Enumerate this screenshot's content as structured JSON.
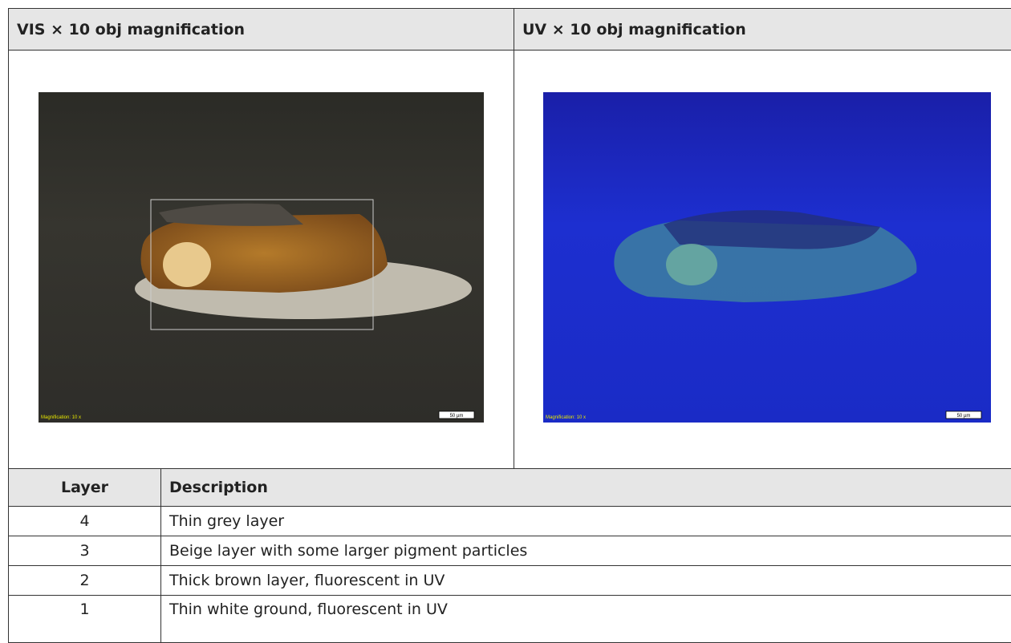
{
  "panels": [
    {
      "title": "VIS × 10 obj magnification",
      "magnification": "Magnification: 10 x",
      "scale_bar": "50 µm"
    },
    {
      "title": "UV × 10 obj magnification",
      "magnification": "Magnification: 10 x",
      "scale_bar": "50 µm"
    }
  ],
  "table": {
    "header": [
      "Layer",
      "Description"
    ],
    "rows": [
      [
        4,
        "Thin grey layer"
      ],
      [
        3,
        "Beige layer with some larger pigment particles"
      ],
      [
        2,
        "Thick brown layer, fluorescent in UV"
      ],
      [
        1,
        "Thin white ground, fluorescent in UV"
      ]
    ]
  }
}
